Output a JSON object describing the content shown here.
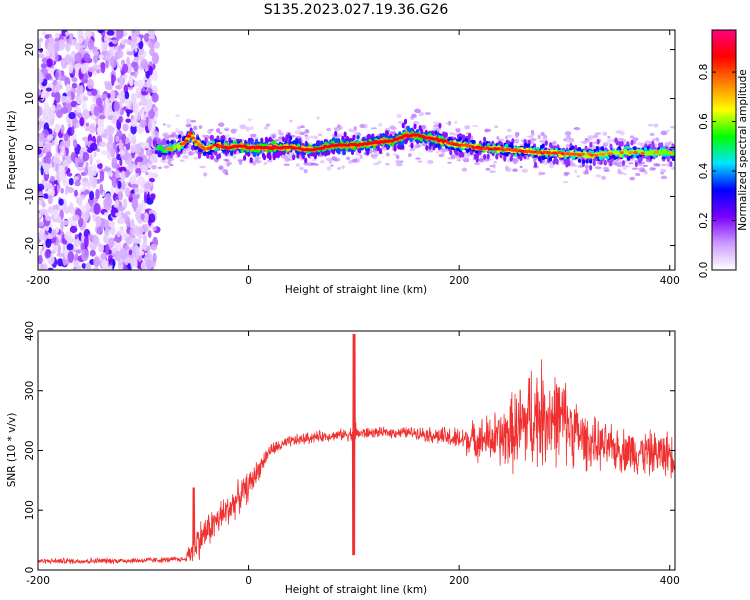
{
  "title": "S135.2023.027.19.36.G26",
  "chart_data": [
    {
      "type": "heatmap",
      "xlabel": "Height of straight line (km)",
      "ylabel": "Frequency (Hz)",
      "xlim": [
        -200,
        405
      ],
      "ylim": [
        -25,
        24
      ],
      "x_ticks": [
        -200,
        0,
        200,
        400
      ],
      "y_ticks": [
        -20,
        -10,
        0,
        10,
        20
      ],
      "colorbar": {
        "label": "Normalized spectral amplitude",
        "range": [
          0,
          0.97
        ],
        "ticks": [
          0.0,
          0.2,
          0.4,
          0.6,
          0.8
        ],
        "colors": [
          "#ffffff",
          "#cc99ff",
          "#7a00ff",
          "#0000ff",
          "#00e5ff",
          "#00ff00",
          "#ffff00",
          "#ff8000",
          "#ff0000",
          "#ff0080"
        ]
      },
      "noise_region_x": [
        -200,
        -87
      ],
      "ridge": {
        "x": [
          -87,
          -80,
          -70,
          -60,
          -55,
          -50,
          -40,
          -30,
          -20,
          -10,
          0,
          20,
          40,
          60,
          80,
          100,
          120,
          140,
          150,
          160,
          170,
          180,
          200,
          220,
          250,
          280,
          300,
          330,
          360,
          390,
          405
        ],
        "freq": [
          0,
          -0.5,
          0,
          1,
          3,
          1,
          -0.3,
          0.5,
          0,
          0.3,
          0,
          0,
          0,
          -0.5,
          0.5,
          0.5,
          1,
          1.5,
          2.5,
          2.5,
          2,
          1.5,
          0.5,
          0,
          -0.5,
          -1,
          -1.3,
          -1.5,
          -1,
          -1,
          -1
        ],
        "amplitude": [
          0.35,
          0.45,
          0.55,
          0.7,
          0.8,
          0.6,
          0.65,
          0.7,
          0.85,
          0.8,
          0.95,
          0.9,
          0.8,
          0.85,
          0.9,
          0.9,
          0.85,
          0.9,
          0.95,
          0.9,
          0.85,
          0.8,
          0.7,
          0.75,
          0.7,
          0.7,
          0.65,
          0.6,
          0.6,
          0.55,
          0.5
        ]
      }
    },
    {
      "type": "line",
      "xlabel": "Height of straight line (km)",
      "ylabel": "SNR (10 * v/v)",
      "xlim": [
        -200,
        405
      ],
      "ylim": [
        0,
        400
      ],
      "x_ticks": [
        -200,
        0,
        200,
        400
      ],
      "y_ticks": [
        0,
        100,
        200,
        300,
        400
      ],
      "color": "#f03030",
      "series": [
        {
          "x": [
            -200,
            -150,
            -100,
            -60,
            -52,
            -40,
            -20,
            0,
            20,
            40,
            60,
            80,
            98,
            100,
            102,
            120,
            160,
            200,
            240,
            260,
            270,
            280,
            300,
            320,
            340,
            360,
            380,
            400,
            405
          ],
          "y": [
            15,
            15,
            16,
            18,
            40,
            65,
            100,
            140,
            200,
            215,
            222,
            225,
            228,
            235,
            228,
            230,
            230,
            218,
            220,
            240,
            260,
            260,
            250,
            215,
            205,
            200,
            195,
            195,
            190
          ],
          "spread": [
            5,
            6,
            6,
            5,
            40,
            35,
            35,
            30,
            14,
            12,
            12,
            10,
            14,
            150,
            14,
            10,
            12,
            25,
            60,
            95,
            110,
            105,
            85,
            55,
            45,
            45,
            45,
            45,
            40
          ]
        }
      ]
    }
  ]
}
